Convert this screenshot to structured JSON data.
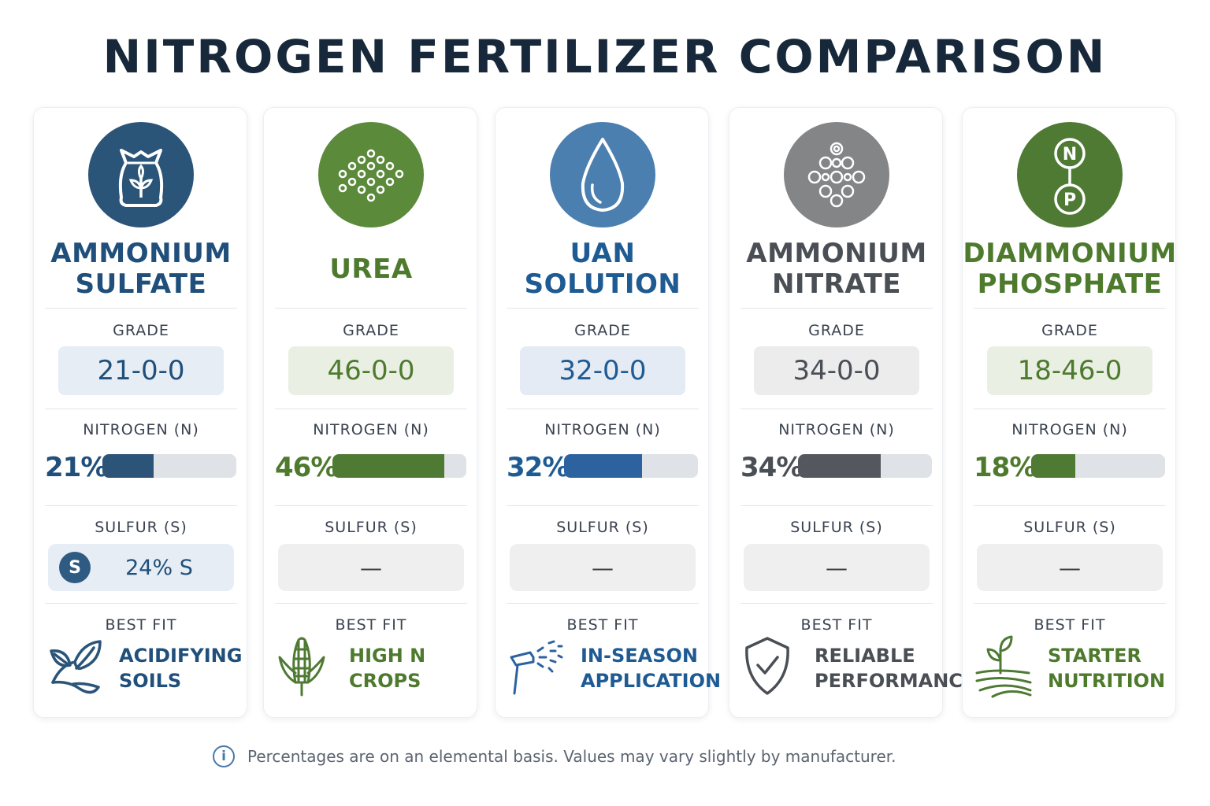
{
  "title": "NITROGEN FERTILIZER COMPARISON",
  "labels": {
    "grade": "GRADE",
    "nitrogen": "NITROGEN (N)",
    "sulfur": "SULFUR (S)",
    "best_fit": "BEST FIT"
  },
  "footnote": "Percentages are on an elemental basis. Values may vary slightly by manufacturer.",
  "footnote_icon": "info-icon",
  "chart_data": {
    "type": "bar",
    "categories": [
      "AMMONIUM SULFATE",
      "UREA",
      "UAN SOLUTION",
      "AMMONIUM NITRATE",
      "DIAMMONIUM PHOSPHATE"
    ],
    "series": [
      {
        "name": "NITROGEN (N)",
        "values": [
          21,
          46,
          32,
          34,
          18
        ]
      }
    ],
    "ylim": [
      0,
      55
    ],
    "cards": [
      {
        "name_line1": "AMMONIUM",
        "name_line2": "SULFATE",
        "grade": "21-0-0",
        "nitrogen_value": 21,
        "nitrogen_label": "21%",
        "sulfur": "24% S",
        "sulfur_badge": "S",
        "best_fit_line1": "ACIDIFYING",
        "best_fit_line2": "SOILS",
        "icon": "fertilizer-bag-icon",
        "fit_icon": "leaf-sprout-icon",
        "color": "#1f4f7a",
        "bar_color": "#2c5478",
        "box_color": "#e6edf4",
        "circle_color": "#2b5479"
      },
      {
        "name_line1": "UREA",
        "name_line2": "",
        "grade": "46-0-0",
        "nitrogen_value": 46,
        "nitrogen_label": "46%",
        "sulfur": "—",
        "sulfur_badge": "",
        "best_fit_line1": "HIGH N",
        "best_fit_line2": "CROPS",
        "icon": "granules-icon",
        "fit_icon": "corn-icon",
        "color": "#4e7a2e",
        "bar_color": "#4f7a34",
        "box_color": "#eaefe4",
        "circle_color": "#5a8a3a"
      },
      {
        "name_line1": "UAN",
        "name_line2": "SOLUTION",
        "grade": "32-0-0",
        "nitrogen_value": 32,
        "nitrogen_label": "32%",
        "sulfur": "—",
        "sulfur_badge": "",
        "best_fit_line1": "IN-SEASON",
        "best_fit_line2": "APPLICATION",
        "icon": "droplet-icon",
        "fit_icon": "sprayer-icon",
        "color": "#1f5b93",
        "bar_color": "#2d62a0",
        "box_color": "#e4ebf4",
        "circle_color": "#4a7fb0"
      },
      {
        "name_line1": "AMMONIUM",
        "name_line2": "NITRATE",
        "grade": "34-0-0",
        "nitrogen_value": 34,
        "nitrogen_label": "34%",
        "sulfur": "—",
        "sulfur_badge": "",
        "best_fit_line1": "RELIABLE",
        "best_fit_line2": "PERFORMANCE",
        "icon": "prills-icon",
        "fit_icon": "shield-check-icon",
        "color": "#4a4f55",
        "bar_color": "#54585e",
        "box_color": "#ececed",
        "circle_color": "#838587"
      },
      {
        "name_line1": "DIAMMONIUM",
        "name_line2": "PHOSPHATE",
        "grade": "18-46-0",
        "nitrogen_value": 18,
        "nitrogen_label": "18%",
        "sulfur": "—",
        "sulfur_badge": "",
        "best_fit_line1": "STARTER",
        "best_fit_line2": "NUTRITION",
        "icon": "n-p-molecule-icon",
        "fit_icon": "seedling-field-icon",
        "color": "#4e7a2e",
        "bar_color": "#4f7a34",
        "box_color": "#eaefe4",
        "circle_color": "#4f7a34"
      }
    ]
  }
}
